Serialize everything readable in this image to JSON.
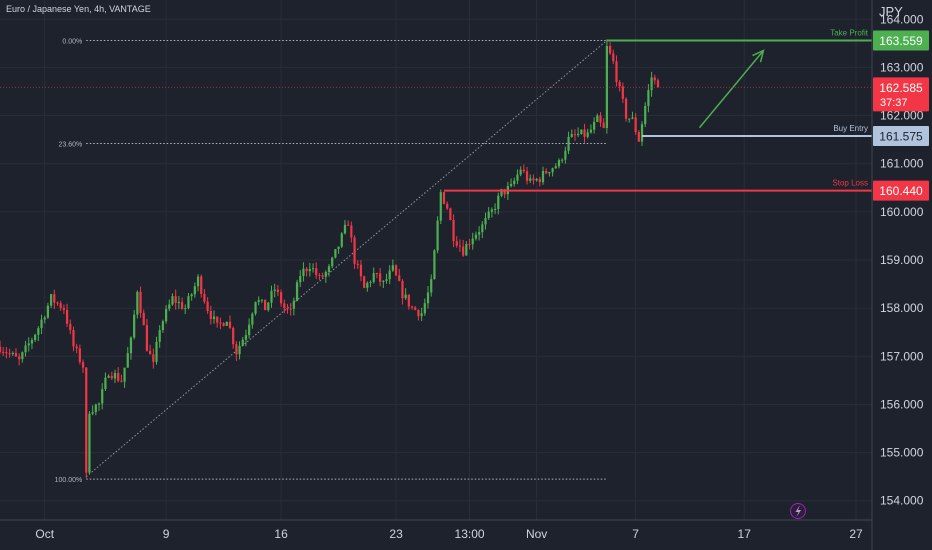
{
  "symbol_title": "Euro / Japanese Yen, 4h, VANTAGE",
  "currency": "JPY",
  "colors": {
    "background": "#1e222d",
    "up": "#4caf50",
    "down": "#f23645",
    "grid": "#2a2e39",
    "text": "#d1d4dc",
    "take_profit": "#4caf50",
    "stop_loss": "#f23645",
    "buy_entry": "#b0c4de",
    "fib": "#b2b5be",
    "arrow": "#4caf50",
    "price_box": "#f23645",
    "lightning": "#9c27b0"
  },
  "chart_data": {
    "type": "candlestick",
    "interval": "4h",
    "y_range": [
      153.6,
      164.4
    ],
    "y_ticks": [
      154.0,
      155.0,
      156.0,
      157.0,
      158.0,
      159.0,
      160.0,
      161.0,
      162.0,
      163.0,
      164.0
    ],
    "y_tick_labels": [
      "154.000",
      "155.000",
      "156.000",
      "157.000",
      "158.000",
      "159.000",
      "160.000",
      "161.000",
      "162.000",
      "163.000",
      "164.000"
    ],
    "x_ticks": [
      {
        "label": "Oct",
        "bar": 0
      },
      {
        "label": "9",
        "bar": 38
      },
      {
        "label": "16",
        "bar": 74
      },
      {
        "label": "23",
        "bar": 110
      },
      {
        "label": "13:00",
        "bar": 133
      },
      {
        "label": "Nov",
        "bar": 154
      },
      {
        "label": "7",
        "bar": 185
      },
      {
        "label": "17",
        "bar": 219
      },
      {
        "label": "27",
        "bar": 254
      }
    ],
    "x_span_bars": [
      -14,
      259
    ],
    "waypoints": [
      [
        -14,
        157.2
      ],
      [
        -8,
        156.9
      ],
      [
        -2,
        157.6
      ],
      [
        2,
        158.2
      ],
      [
        6,
        158.0
      ],
      [
        9,
        157.2
      ],
      [
        12,
        156.8
      ],
      [
        13,
        154.5
      ],
      [
        14,
        155.9
      ],
      [
        17,
        156.0
      ],
      [
        20,
        156.7
      ],
      [
        24,
        156.5
      ],
      [
        27,
        157.3
      ],
      [
        29,
        158.4
      ],
      [
        32,
        157.2
      ],
      [
        34,
        156.8
      ],
      [
        36,
        157.6
      ],
      [
        40,
        158.2
      ],
      [
        44,
        158.0
      ],
      [
        48,
        158.6
      ],
      [
        51,
        158.0
      ],
      [
        54,
        157.6
      ],
      [
        57,
        157.8
      ],
      [
        60,
        157.1
      ],
      [
        63,
        157.5
      ],
      [
        66,
        158.2
      ],
      [
        69,
        158.0
      ],
      [
        72,
        158.4
      ],
      [
        75,
        158.0
      ],
      [
        77,
        157.9
      ],
      [
        80,
        158.7
      ],
      [
        83,
        158.9
      ],
      [
        86,
        158.6
      ],
      [
        89,
        158.8
      ],
      [
        92,
        159.3
      ],
      [
        95,
        159.8
      ],
      [
        97,
        159.0
      ],
      [
        100,
        158.4
      ],
      [
        103,
        158.7
      ],
      [
        106,
        158.5
      ],
      [
        109,
        158.8
      ],
      [
        112,
        158.3
      ],
      [
        115,
        158.0
      ],
      [
        118,
        157.9
      ],
      [
        121,
        158.5
      ],
      [
        124,
        160.4
      ],
      [
        126,
        160.1
      ],
      [
        128,
        159.5
      ],
      [
        131,
        159.2
      ],
      [
        134,
        159.5
      ],
      [
        137,
        159.7
      ],
      [
        140,
        160.0
      ],
      [
        143,
        160.4
      ],
      [
        146,
        160.5
      ],
      [
        149,
        160.9
      ],
      [
        152,
        160.6
      ],
      [
        155,
        160.7
      ],
      [
        158,
        160.9
      ],
      [
        161,
        161.0
      ],
      [
        164,
        161.5
      ],
      [
        167,
        161.6
      ],
      [
        170,
        161.6
      ],
      [
        173,
        161.9
      ],
      [
        175,
        161.7
      ],
      [
        176,
        163.4
      ],
      [
        178,
        163.1
      ],
      [
        180,
        162.5
      ],
      [
        182,
        162.0
      ],
      [
        184,
        161.9
      ],
      [
        186,
        161.5
      ],
      [
        188,
        162.2
      ],
      [
        190,
        162.8
      ],
      [
        192,
        162.6
      ]
    ],
    "last_price": 162.585,
    "countdown": "37:37",
    "fib": {
      "start_bar": 13,
      "start_price": 154.5,
      "end_bar": 176,
      "end_price": 163.56,
      "levels": [
        {
          "label": "0.00%",
          "price": 163.559
        },
        {
          "label": "23.60%",
          "price": 161.42
        },
        {
          "label": "100.00%",
          "price": 154.45
        }
      ]
    },
    "trade_levels": [
      {
        "name": "Take Profit",
        "price": 163.559,
        "price_label": "163.559",
        "start_bar": 176
      },
      {
        "name": "Buy Entry",
        "price": 161.575,
        "price_label": "161.575",
        "start_bar": 187
      },
      {
        "name": "Stop Loss",
        "price": 160.44,
        "price_label": "160.440",
        "start_bar": 125
      }
    ],
    "arrow": {
      "from_bar": 205,
      "from_price": 161.75,
      "to_bar": 225,
      "to_price": 163.35
    }
  }
}
